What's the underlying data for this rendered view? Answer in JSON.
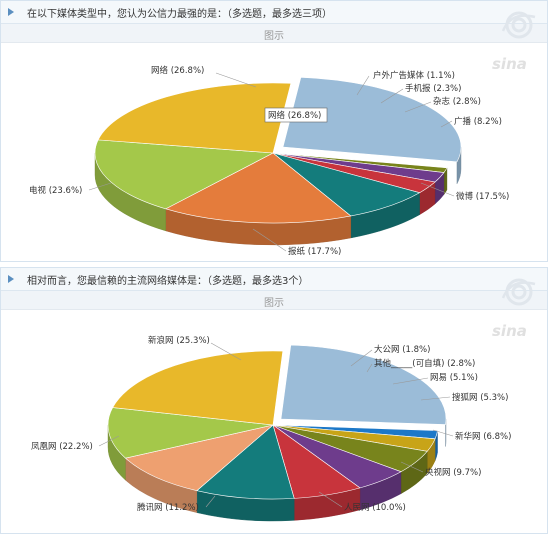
{
  "colors": {
    "p_light_blue": "#9bbcd8",
    "p_yellow": "#e8b82a",
    "p_light_green": "#a4c84a",
    "p_orange": "#e47c3c",
    "p_salmon": "#eea070",
    "p_teal": "#147c7c",
    "p_red": "#c8343c",
    "p_purple": "#6e3c8c",
    "p_olive": "#78841c",
    "p_gold": "#c8a418",
    "p_blue": "#1c78c8"
  },
  "icons": {
    "watermark": "sina-logo",
    "toggle": "triangle-right-icon"
  },
  "sections": [
    {
      "question": "在以下媒体类型中，您认为公信力最强的是：（多选题，最多选三项）",
      "tab_label": "图示",
      "tooltip": "网络 (26.8%)"
    },
    {
      "question": "相对而言，您最信赖的主流网络媒体是：（多选题，最多选3个）",
      "tab_label": "图示"
    }
  ],
  "watermark_text": "sina",
  "chart_data": [
    {
      "type": "pie",
      "style": "3d",
      "slices": [
        {
          "label": "网络",
          "value": 26.8,
          "color": "#9bbcd8",
          "label_text": "网络 (26.8%)"
        },
        {
          "label": "户外广告媒体",
          "value": 1.1,
          "color": "#78841c",
          "label_text": "户外广告媒体 (1.1%)"
        },
        {
          "label": "手机报",
          "value": 2.3,
          "color": "#6e3c8c",
          "label_text": "手机报 (2.3%)"
        },
        {
          "label": "杂志",
          "value": 2.8,
          "color": "#c8343c",
          "label_text": "杂志 (2.8%)"
        },
        {
          "label": "广播",
          "value": 8.2,
          "color": "#147c7c",
          "label_text": "广播 (8.2%)"
        },
        {
          "label": "微博",
          "value": 17.5,
          "color": "#e47c3c",
          "label_text": "微博 (17.5%)"
        },
        {
          "label": "报纸",
          "value": 17.7,
          "color": "#a4c84a",
          "label_text": "报纸 (17.7%)"
        },
        {
          "label": "电视",
          "value": 23.6,
          "color": "#e8b82a",
          "label_text": "电视 (23.6%)"
        }
      ]
    },
    {
      "type": "pie",
      "style": "3d",
      "slices": [
        {
          "label": "新浪网",
          "value": 25.3,
          "color": "#9bbcd8",
          "label_text": "新浪网 (25.3%)"
        },
        {
          "label": "大公网",
          "value": 1.8,
          "color": "#1c78c8",
          "label_text": "大公网 (1.8%)"
        },
        {
          "label": "其他_____(可自填)",
          "value": 2.8,
          "color": "#c8a418",
          "label_text": "其他_____(可自填) (2.8%)"
        },
        {
          "label": "网易",
          "value": 5.1,
          "color": "#78841c",
          "label_text": "网易 (5.1%)"
        },
        {
          "label": "搜狐网",
          "value": 5.3,
          "color": "#6e3c8c",
          "label_text": "搜狐网 (5.3%)"
        },
        {
          "label": "新华网",
          "value": 6.8,
          "color": "#c8343c",
          "label_text": "新华网 (6.8%)"
        },
        {
          "label": "央视网",
          "value": 9.7,
          "color": "#147c7c",
          "label_text": "央视网 (9.7%)"
        },
        {
          "label": "人民网",
          "value": 10.0,
          "color": "#eea070",
          "label_text": "人民网 (10.0%)"
        },
        {
          "label": "腾讯网",
          "value": 11.2,
          "color": "#a4c84a",
          "label_text": "腾讯网 (11.2%)"
        },
        {
          "label": "凤凰网",
          "value": 22.2,
          "color": "#e8b82a",
          "label_text": "凤凰网 (22.2%)"
        }
      ]
    }
  ]
}
